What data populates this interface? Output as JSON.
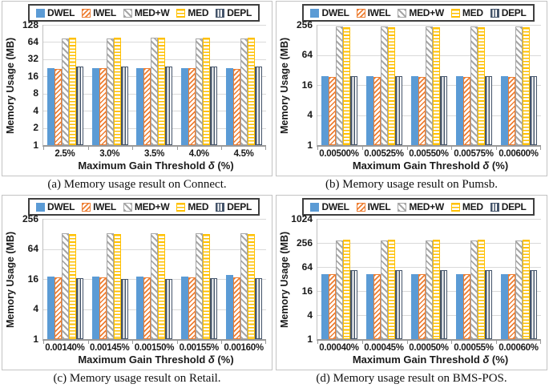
{
  "figure": {
    "ylabel": "Memory Usage (MB)",
    "xlabel_pre": "Maximum Gain Threshold ",
    "xlabel_delta": "δ",
    "xlabel_post": " (%)",
    "grid_color": "#d9d9d9",
    "legend_position": "top",
    "series_styles": [
      {
        "name": "DWEL",
        "color": "#5B9BD5",
        "pattern": "solid"
      },
      {
        "name": "IWEL",
        "color": "#ED7D31",
        "pattern": "diag-down"
      },
      {
        "name": "MED+W",
        "color": "#A6A6A6",
        "pattern": "diag-up"
      },
      {
        "name": "MED",
        "color": "#FFC000",
        "pattern": "horizontal"
      },
      {
        "name": "DEPL",
        "color": "#44546A",
        "pattern": "vertical"
      }
    ]
  },
  "chart_data": [
    {
      "type": "bar",
      "yscale": "log",
      "dataset": "Connect",
      "title": "(a) Memory usage result on Connect.",
      "xlabel": "Maximum Gain Threshold δ (%)",
      "ylabel": "Memory Usage (MB)",
      "categories": [
        "2.5%",
        "3.0%",
        "3.5%",
        "4.0%",
        "4.5%"
      ],
      "yticks": [
        1,
        2,
        4,
        8,
        16,
        32,
        64,
        128
      ],
      "ylim": [
        1,
        128
      ],
      "series": [
        {
          "name": "DWEL",
          "values": [
            22,
            22,
            22.5,
            22,
            22.5
          ]
        },
        {
          "name": "IWEL",
          "values": [
            21.5,
            22,
            22,
            22,
            21.5
          ]
        },
        {
          "name": "MED+W",
          "values": [
            75,
            74,
            76,
            74,
            75
          ]
        },
        {
          "name": "MED",
          "values": [
            76,
            76,
            76,
            76,
            76
          ]
        },
        {
          "name": "DEPL",
          "values": [
            23.5,
            24,
            23.5,
            23.5,
            23.5
          ]
        }
      ]
    },
    {
      "type": "bar",
      "yscale": "log",
      "dataset": "Pumsb",
      "title": "(b) Memory usage result on Pumsb.",
      "xlabel": "Maximum Gain Threshold δ (%)",
      "ylabel": "Memory Usage (MB)",
      "categories": [
        "0.00500%",
        "0.00525%",
        "0.00550%",
        "0.00575%",
        "0.00600%"
      ],
      "yticks": [
        1,
        4,
        16,
        64,
        256
      ],
      "ylim": [
        1,
        256
      ],
      "series": [
        {
          "name": "DWEL",
          "values": [
            24,
            24,
            24,
            24,
            24
          ]
        },
        {
          "name": "IWEL",
          "values": [
            23,
            23,
            23,
            23,
            23
          ]
        },
        {
          "name": "MED+W",
          "values": [
            235,
            235,
            235,
            235,
            235
          ]
        },
        {
          "name": "MED",
          "values": [
            230,
            232,
            232,
            228,
            230
          ]
        },
        {
          "name": "DEPL",
          "values": [
            24,
            24,
            24,
            24,
            24
          ]
        }
      ]
    },
    {
      "type": "bar",
      "yscale": "log",
      "dataset": "Retail",
      "title": "(c) Memory usage result on Retail.",
      "xlabel": "Maximum Gain Threshold δ (%)",
      "ylabel": "Memory Usage (MB)",
      "categories": [
        "0.00140%",
        "0.00145%",
        "0.00150%",
        "0.00155%",
        "0.00160%"
      ],
      "yticks": [
        1,
        4,
        16,
        64,
        256
      ],
      "ylim": [
        1,
        256
      ],
      "series": [
        {
          "name": "DWEL",
          "values": [
            18,
            18,
            18,
            18,
            19
          ]
        },
        {
          "name": "IWEL",
          "values": [
            17.5,
            17,
            17.5,
            17.5,
            17.5
          ]
        },
        {
          "name": "MED+W",
          "values": [
            130,
            130,
            130,
            130,
            130
          ]
        },
        {
          "name": "MED",
          "values": [
            128,
            128,
            128,
            126,
            128
          ]
        },
        {
          "name": "DEPL",
          "values": [
            16.5,
            16,
            16,
            16.5,
            16.5
          ]
        }
      ]
    },
    {
      "type": "bar",
      "yscale": "log",
      "dataset": "BMS-POS",
      "title": "(d) Memory usage result on BMS-POS.",
      "xlabel": "Maximum Gain Threshold δ (%)",
      "ylabel": "Memory Usage (MB)",
      "categories": [
        "0.00040%",
        "0.00045%",
        "0.00050%",
        "0.00055%",
        "0.00060%"
      ],
      "yticks": [
        1,
        4,
        16,
        64,
        256,
        1024
      ],
      "ylim": [
        1,
        1024
      ],
      "series": [
        {
          "name": "DWEL",
          "values": [
            42,
            42,
            42,
            42,
            42
          ]
        },
        {
          "name": "IWEL",
          "values": [
            42,
            42,
            42,
            42,
            42
          ]
        },
        {
          "name": "MED+W",
          "values": [
            300,
            300,
            300,
            300,
            300
          ]
        },
        {
          "name": "MED",
          "values": [
            310,
            312,
            310,
            310,
            310
          ]
        },
        {
          "name": "DEPL",
          "values": [
            52,
            53,
            52,
            52,
            52
          ]
        }
      ]
    }
  ]
}
